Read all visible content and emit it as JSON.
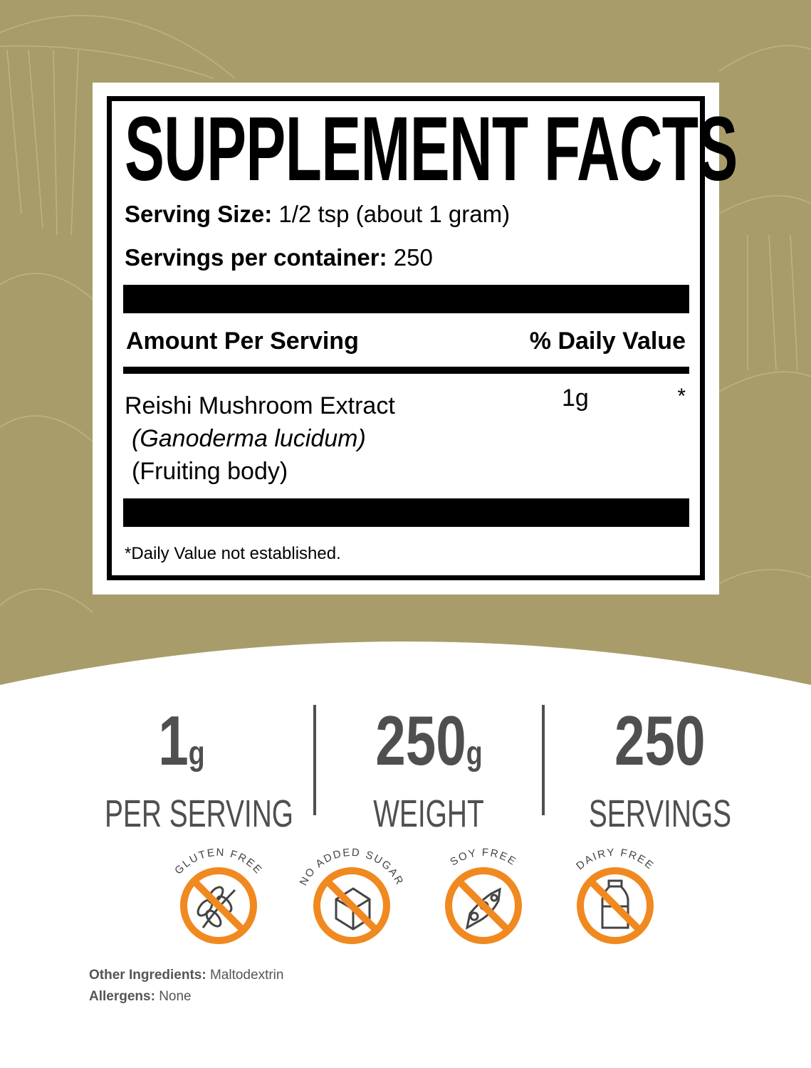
{
  "colors": {
    "background": "#a89d6a",
    "accent": "#f0891f",
    "stat_text": "#4f4f4f"
  },
  "label": {
    "title": "SUPPLEMENT FACTS",
    "serving_size_label": "Serving Size:",
    "serving_size_value": "1/2 tsp (about 1 gram)",
    "servings_label": "Servings per container:",
    "servings_value": "250",
    "amount_header": "Amount Per Serving",
    "dv_header": "% Daily Value",
    "ingredient": {
      "name": "Reishi Mushroom Extract",
      "latin": "(Ganoderma lucidum)",
      "part": "(Fruiting body)",
      "amount": "1g",
      "dv": "*"
    },
    "footnote": "*Daily Value not established."
  },
  "stats": [
    {
      "value": "1",
      "unit": "g",
      "label": "PER SERVING"
    },
    {
      "value": "250",
      "unit": "g",
      "label": "WEIGHT"
    },
    {
      "value": "250",
      "unit": "",
      "label": "SERVINGS"
    }
  ],
  "badges": [
    {
      "text": "GLUTEN FREE",
      "icon": "wheat-icon"
    },
    {
      "text": "NO ADDED SUGAR",
      "icon": "sugar-cube-icon"
    },
    {
      "text": "SOY FREE",
      "icon": "soybean-icon"
    },
    {
      "text": "DAIRY FREE",
      "icon": "milk-bottle-icon"
    }
  ],
  "other_ingredients": {
    "label": "Other Ingredients:",
    "value": "Maltodextrin"
  },
  "allergens": {
    "label": "Allergens:",
    "value": "None"
  }
}
